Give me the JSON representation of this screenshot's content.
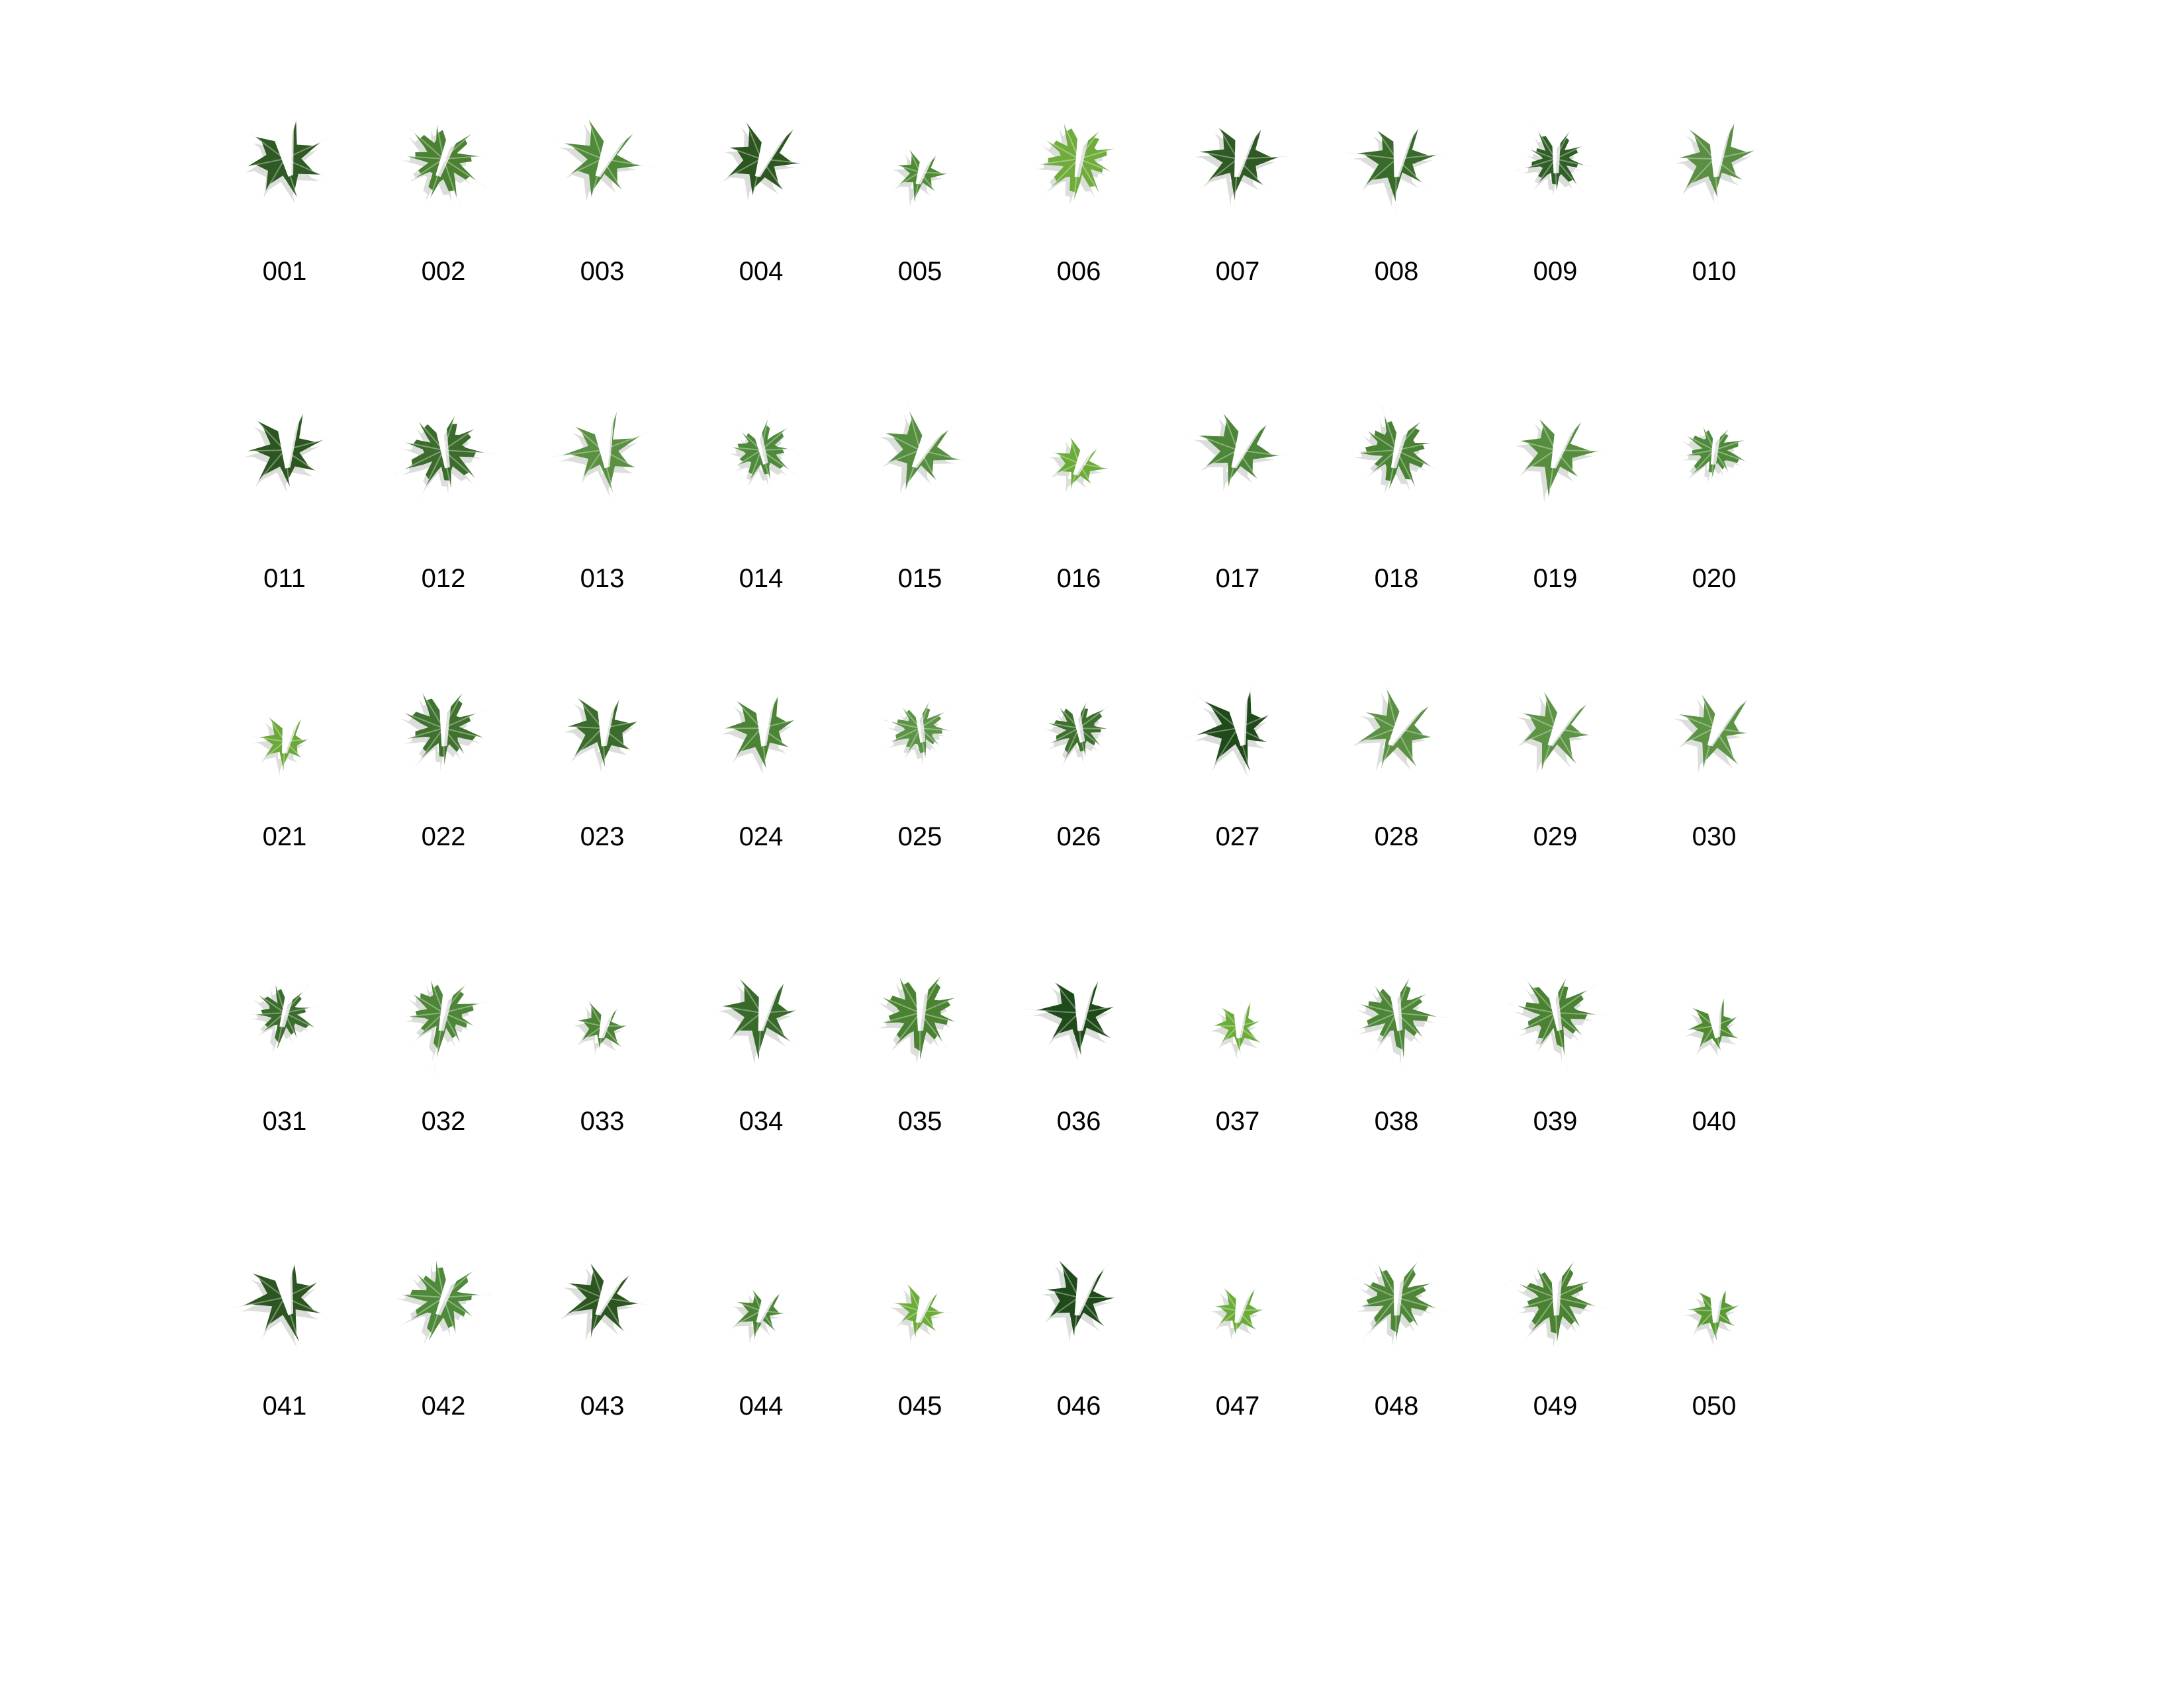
{
  "sheet": {
    "title": "",
    "background": "#ffffff"
  },
  "specimens": [
    {
      "label": "001",
      "color": "#2f5a24",
      "shape": "lobed"
    },
    {
      "label": "002",
      "color": "#4a8232",
      "shape": "serrated"
    },
    {
      "label": "003",
      "color": "#4f8a38",
      "shape": "lobed"
    },
    {
      "label": "004",
      "color": "#2c5620",
      "shape": "lobed"
    },
    {
      "label": "005",
      "color": "#4f8a34",
      "shape": "small"
    },
    {
      "label": "006",
      "color": "#6fac3c",
      "shape": "serrated"
    },
    {
      "label": "007",
      "color": "#2f5a24",
      "shape": "lobed"
    },
    {
      "label": "008",
      "color": "#386a2a",
      "shape": "lobed"
    },
    {
      "label": "009",
      "color": "#2f5e26",
      "shape": "fine"
    },
    {
      "label": "010",
      "color": "#5a8e42",
      "shape": "lobed"
    },
    {
      "label": "011",
      "color": "#2c5620",
      "shape": "lobed"
    },
    {
      "label": "012",
      "color": "#3b6c2c",
      "shape": "serrated"
    },
    {
      "label": "013",
      "color": "#5a9042",
      "shape": "lobed"
    },
    {
      "label": "014",
      "color": "#4e8a3a",
      "shape": "fine"
    },
    {
      "label": "015",
      "color": "#568e40",
      "shape": "lobed"
    },
    {
      "label": "016",
      "color": "#6aac36",
      "shape": "small"
    },
    {
      "label": "017",
      "color": "#4d8638",
      "shape": "lobed"
    },
    {
      "label": "018",
      "color": "#4a8234",
      "shape": "serrated"
    },
    {
      "label": "019",
      "color": "#568e3e",
      "shape": "lobed"
    },
    {
      "label": "020",
      "color": "#4e8a3a",
      "shape": "fine"
    },
    {
      "label": "021",
      "color": "#6aa838",
      "shape": "small"
    },
    {
      "label": "022",
      "color": "#3f722e",
      "shape": "serrated"
    },
    {
      "label": "023",
      "color": "#3b6c2c",
      "shape": "lobed"
    },
    {
      "label": "024",
      "color": "#4a8434",
      "shape": "lobed"
    },
    {
      "label": "025",
      "color": "#5c9446",
      "shape": "fine"
    },
    {
      "label": "026",
      "color": "#3c702c",
      "shape": "fine"
    },
    {
      "label": "027",
      "color": "#1f4a1a",
      "shape": "lobed"
    },
    {
      "label": "028",
      "color": "#5a9042",
      "shape": "lobed"
    },
    {
      "label": "029",
      "color": "#5c9444",
      "shape": "lobed"
    },
    {
      "label": "030",
      "color": "#5c9444",
      "shape": "lobed"
    },
    {
      "label": "031",
      "color": "#3a6c2c",
      "shape": "fine"
    },
    {
      "label": "032",
      "color": "#4e8638",
      "shape": "serrated"
    },
    {
      "label": "033",
      "color": "#4a8434",
      "shape": "small"
    },
    {
      "label": "034",
      "color": "#386a2a",
      "shape": "lobed"
    },
    {
      "label": "035",
      "color": "#4a8232",
      "shape": "serrated"
    },
    {
      "label": "036",
      "color": "#1f4a1a",
      "shape": "lobed"
    },
    {
      "label": "037",
      "color": "#6aac36",
      "shape": "small"
    },
    {
      "label": "038",
      "color": "#4e8638",
      "shape": "serrated"
    },
    {
      "label": "039",
      "color": "#4a8232",
      "shape": "serrated"
    },
    {
      "label": "040",
      "color": "#4f8a30",
      "shape": "small"
    },
    {
      "label": "041",
      "color": "#2c5620",
      "shape": "lobed"
    },
    {
      "label": "042",
      "color": "#4e8a3a",
      "shape": "serrated"
    },
    {
      "label": "043",
      "color": "#2c5620",
      "shape": "lobed"
    },
    {
      "label": "044",
      "color": "#4a8434",
      "shape": "small"
    },
    {
      "label": "045",
      "color": "#6aac36",
      "shape": "small"
    },
    {
      "label": "046",
      "color": "#1f4a1a",
      "shape": "lobed"
    },
    {
      "label": "047",
      "color": "#6aac36",
      "shape": "small"
    },
    {
      "label": "048",
      "color": "#4e8638",
      "shape": "serrated"
    },
    {
      "label": "049",
      "color": "#4a8232",
      "shape": "serrated"
    },
    {
      "label": "050",
      "color": "#5a9a34",
      "shape": "small"
    }
  ]
}
